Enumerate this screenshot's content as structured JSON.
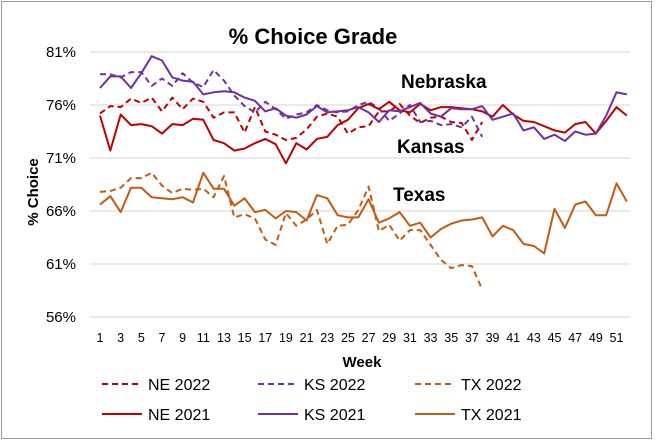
{
  "chart_data": {
    "type": "line",
    "title": "% Choice Grade",
    "xlabel": "Week",
    "ylabel": "% Choice",
    "ylim": [
      56,
      81
    ],
    "yticks": [
      "56%",
      "61%",
      "66%",
      "71%",
      "76%",
      "81%"
    ],
    "xticks": [
      "1",
      "3",
      "5",
      "7",
      "9",
      "11",
      "13",
      "15",
      "17",
      "19",
      "21",
      "23",
      "25",
      "27",
      "29",
      "31",
      "33",
      "35",
      "37",
      "39",
      "41",
      "43",
      "45",
      "47",
      "49",
      "51"
    ],
    "grid": "horizontal",
    "legend_position": "bottom",
    "annotations": [
      {
        "text": "Nebraska",
        "color": "#c00000"
      },
      {
        "text": "Kansas",
        "color": "#7030a0"
      },
      {
        "text": "Texas",
        "color": "#c55a11"
      }
    ],
    "colors": {
      "NE": "#c00000",
      "KS": "#7030a0",
      "TX": "#c55a11"
    },
    "series": [
      {
        "name": "NE 2022",
        "style": "dashed",
        "color": "#c00000",
        "values": [
          75.2,
          75.9,
          75.8,
          76.6,
          76.2,
          76.7,
          75.4,
          76.7,
          75.6,
          76.6,
          76.3,
          74.8,
          75.3,
          75.3,
          73.4,
          75.8,
          73.5,
          73.2,
          72.7,
          72.9,
          73.7,
          74.9,
          75.2,
          74.9,
          73.3,
          73.9,
          74.0,
          75.4,
          75.4,
          76.1,
          75.0,
          74.3,
          74.8,
          74.9,
          74.4,
          74.3,
          72.7,
          74.4
        ]
      },
      {
        "name": "KS 2022",
        "style": "dashed",
        "color": "#7030a0",
        "values": [
          78.9,
          78.9,
          78.6,
          79.1,
          79.1,
          77.8,
          78.5,
          77.8,
          79.0,
          78.1,
          77.7,
          79.3,
          78.3,
          76.9,
          75.9,
          75.3,
          76.3,
          75.6,
          74.7,
          75.1,
          75.3,
          76.0,
          75.5,
          75.3,
          75.4,
          76.0,
          76.3,
          75.7,
          74.5,
          75.2,
          76.0,
          74.4,
          74.5,
          74.1,
          74.2,
          73.9,
          74.9,
          73.0
        ]
      },
      {
        "name": "TX 2022",
        "style": "dashed",
        "color": "#c55a11",
        "values": [
          67.8,
          67.9,
          68.2,
          69.1,
          69.1,
          69.6,
          68.4,
          67.7,
          68.1,
          68.0,
          68.1,
          67.3,
          69.3,
          65.4,
          65.7,
          65.3,
          63.3,
          62.8,
          65.8,
          64.6,
          65.2,
          66.1,
          62.9,
          64.6,
          64.7,
          66.1,
          68.3,
          64.1,
          64.7,
          63.2,
          64.2,
          64.2,
          62.8,
          61.4,
          60.6,
          60.9,
          60.8,
          58.6
        ]
      },
      {
        "name": "NE 2021",
        "style": "solid",
        "color": "#c00000",
        "values": [
          75.0,
          71.7,
          75.1,
          74.1,
          74.2,
          74.0,
          73.3,
          74.2,
          74.1,
          74.7,
          74.6,
          72.7,
          72.4,
          71.7,
          71.9,
          72.4,
          72.8,
          72.3,
          70.5,
          72.4,
          71.8,
          72.8,
          73.0,
          74.1,
          74.6,
          75.7,
          76.1,
          75.6,
          76.3,
          75.5,
          75.3,
          76.1,
          75.5,
          75.8,
          75.8,
          75.7,
          75.6,
          75.4,
          74.9,
          76.0,
          75.1,
          74.5,
          74.4,
          74.0,
          73.6,
          73.4,
          74.2,
          74.4,
          73.3,
          74.5,
          75.8,
          75.0
        ]
      },
      {
        "name": "KS 2021",
        "style": "solid",
        "color": "#7030a0",
        "values": [
          77.6,
          78.7,
          78.7,
          77.6,
          79.0,
          80.6,
          80.2,
          78.6,
          78.3,
          78.2,
          77.0,
          77.2,
          77.3,
          77.2,
          76.7,
          76.4,
          75.4,
          75.7,
          75.0,
          74.8,
          75.1,
          75.9,
          75.3,
          75.4,
          75.5,
          75.8,
          75.3,
          74.4,
          75.5,
          75.4,
          75.8,
          76.2,
          75.2,
          74.9,
          75.7,
          75.6,
          75.6,
          75.9,
          74.6,
          74.9,
          75.2,
          73.6,
          73.9,
          72.8,
          73.2,
          72.6,
          73.5,
          73.2,
          73.3,
          75.0,
          77.2,
          77.0
        ]
      },
      {
        "name": "TX 2021",
        "style": "solid",
        "color": "#c55a11",
        "values": [
          66.6,
          67.4,
          65.9,
          68.2,
          68.2,
          67.3,
          67.2,
          67.1,
          67.3,
          66.8,
          69.6,
          68.1,
          68.1,
          66.5,
          67.2,
          65.9,
          66.1,
          65.3,
          66.0,
          65.9,
          65.1,
          67.5,
          67.2,
          65.6,
          65.4,
          65.4,
          67.1,
          64.9,
          65.3,
          65.9,
          64.6,
          64.9,
          63.5,
          64.3,
          64.8,
          65.1,
          65.2,
          65.4,
          63.6,
          64.6,
          64.2,
          62.9,
          62.7,
          62.0,
          66.2,
          64.4,
          66.6,
          66.9,
          65.6,
          65.6,
          68.6,
          66.9
        ]
      }
    ]
  }
}
